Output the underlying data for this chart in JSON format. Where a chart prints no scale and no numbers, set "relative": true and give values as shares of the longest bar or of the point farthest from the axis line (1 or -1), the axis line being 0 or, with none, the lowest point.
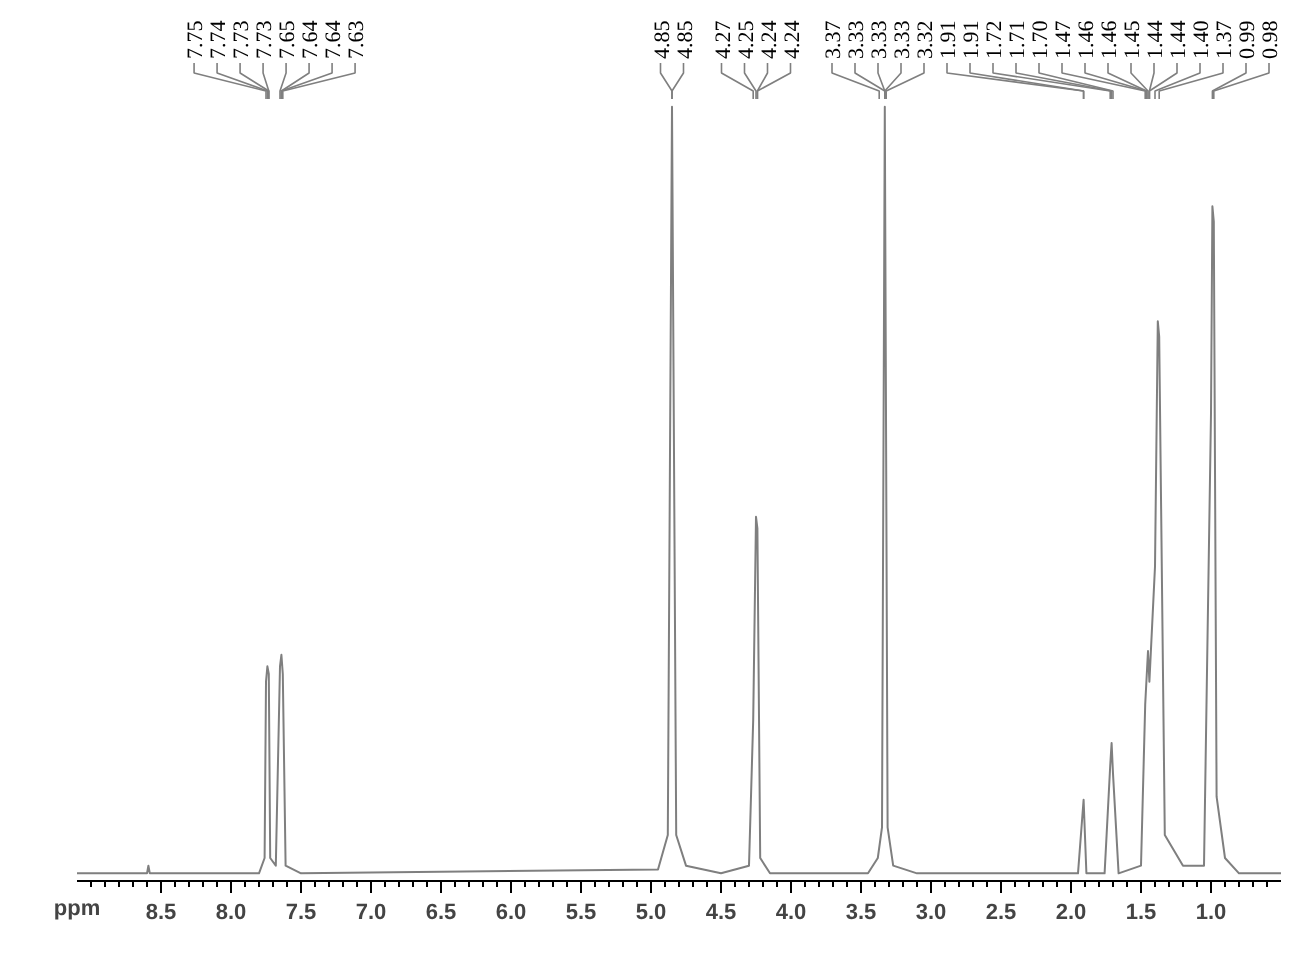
{
  "chart_data": {
    "type": "line",
    "relative": true,
    "xlabel": "ppm",
    "xlim": [
      9.1,
      0.5
    ],
    "xticks": [
      {
        "value": 9.0,
        "label": null
      },
      {
        "value": 8.9,
        "label": null
      },
      {
        "value": 8.8,
        "label": null
      },
      {
        "value": 8.7,
        "label": null
      },
      {
        "value": 8.6,
        "label": null
      },
      8.5,
      {
        "value": 8.4,
        "label": null
      },
      {
        "value": 8.3,
        "label": null
      },
      {
        "value": 8.2,
        "label": null
      },
      {
        "value": 8.1,
        "label": null
      },
      {
        "value": 8,
        "label": "8.0"
      },
      {
        "value": 7.9,
        "label": null
      },
      {
        "value": 7.8,
        "label": null
      },
      {
        "value": 7.7,
        "label": null
      },
      {
        "value": 7.6,
        "label": null
      },
      7.5,
      {
        "value": 7.4,
        "label": null
      },
      {
        "value": 7.3,
        "label": null
      },
      {
        "value": 7.2,
        "label": null
      },
      {
        "value": 7.1,
        "label": null
      },
      {
        "value": 7,
        "label": "7.0"
      },
      {
        "value": 6.9,
        "label": null
      },
      {
        "value": 6.8,
        "label": null
      },
      {
        "value": 6.7,
        "label": null
      },
      {
        "value": 6.6,
        "label": null
      },
      6.5,
      {
        "value": 6.4,
        "label": null
      },
      {
        "value": 6.3,
        "label": null
      },
      {
        "value": 6.2,
        "label": null
      },
      {
        "value": 6.1,
        "label": null
      },
      {
        "value": 6,
        "label": "6.0"
      },
      {
        "value": 5.9,
        "label": null
      },
      {
        "value": 5.8,
        "label": null
      },
      {
        "value": 5.7,
        "label": null
      },
      {
        "value": 5.6,
        "label": null
      },
      5.5,
      {
        "value": 5.4,
        "label": null
      },
      {
        "value": 5.3,
        "label": null
      },
      {
        "value": 5.2,
        "label": null
      },
      {
        "value": 5.1,
        "label": null
      },
      {
        "value": 5,
        "label": "5.0"
      },
      {
        "value": 4.9,
        "label": null
      },
      {
        "value": 4.8,
        "label": null
      },
      {
        "value": 4.7,
        "label": null
      },
      {
        "value": 4.6,
        "label": null
      },
      4.5,
      {
        "value": 4.4,
        "label": null
      },
      {
        "value": 4.3,
        "label": null
      },
      {
        "value": 4.2,
        "label": null
      },
      {
        "value": 4.1,
        "label": null
      },
      {
        "value": 4,
        "label": "4.0"
      },
      {
        "value": 3.9,
        "label": null
      },
      {
        "value": 3.8,
        "label": null
      },
      {
        "value": 3.7,
        "label": null
      },
      {
        "value": 3.6,
        "label": null
      },
      3.5,
      {
        "value": 3.4,
        "label": null
      },
      {
        "value": 3.3,
        "label": null
      },
      {
        "value": 3.2,
        "label": null
      },
      {
        "value": 3.1,
        "label": null
      },
      {
        "value": 3,
        "label": "3.0"
      },
      {
        "value": 2.9,
        "label": null
      },
      {
        "value": 2.8,
        "label": null
      },
      {
        "value": 2.7,
        "label": null
      },
      {
        "value": 2.6,
        "label": null
      },
      2.5,
      {
        "value": 2.4,
        "label": null
      },
      {
        "value": 2.3,
        "label": null
      },
      {
        "value": 2.2,
        "label": null
      },
      {
        "value": 2.1,
        "label": null
      },
      {
        "value": 2,
        "label": "2.0"
      },
      {
        "value": 1.9,
        "label": null
      },
      {
        "value": 1.8,
        "label": null
      },
      {
        "value": 1.7,
        "label": null
      },
      {
        "value": 1.6,
        "label": null
      },
      1.5,
      {
        "value": 1.4,
        "label": null
      },
      {
        "value": 1.3,
        "label": null
      },
      {
        "value": 1.2,
        "label": null
      },
      {
        "value": 1.1,
        "label": null
      },
      {
        "value": 1,
        "label": "1.0"
      },
      {
        "value": 0.9,
        "label": null
      },
      {
        "value": 0.8,
        "label": null
      },
      {
        "value": 0.7,
        "label": null
      },
      {
        "value": 0.6,
        "label": null
      }
    ],
    "grid": false,
    "marker": "none",
    "line_style": "solid",
    "series": [
      {
        "color": "#7f7f7f",
        "x": [
          9.1,
          8.6,
          8.59,
          8.58,
          7.8,
          7.76,
          7.75,
          7.74,
          7.73,
          7.72,
          7.68,
          7.65,
          7.64,
          7.63,
          7.61,
          7.5,
          4.95,
          4.88,
          4.85,
          4.82,
          4.75,
          4.5,
          4.3,
          4.27,
          4.25,
          4.24,
          4.22,
          4.15,
          3.45,
          3.38,
          3.35,
          3.33,
          3.31,
          3.27,
          3.1,
          1.95,
          1.91,
          1.89,
          1.76,
          1.72,
          1.71,
          1.7,
          1.66,
          1.5,
          1.47,
          1.45,
          1.44,
          1.4,
          1.38,
          1.37,
          1.33,
          1.2,
          1.05,
          1.0,
          0.99,
          0.98,
          0.96,
          0.9,
          0.8,
          0.5
        ],
        "values": [
          0,
          0,
          0.01,
          0,
          0,
          0.02,
          0.25,
          0.27,
          0.26,
          0.02,
          0.01,
          0.27,
          0.285,
          0.26,
          0.01,
          0,
          0.005,
          0.05,
          1,
          0.05,
          0.01,
          0,
          0.01,
          0.2,
          0.465,
          0.45,
          0.02,
          0,
          0,
          0.02,
          0.06,
          1,
          0.06,
          0.01,
          0,
          0,
          0.096,
          0,
          0,
          0.14,
          0.17,
          0.13,
          0,
          0.01,
          0.22,
          0.29,
          0.25,
          0.4,
          0.72,
          0.7,
          0.05,
          0.01,
          0.01,
          0.6,
          0.87,
          0.85,
          0.1,
          0.02,
          0,
          0
        ]
      }
    ],
    "annotations": [
      {
        "text": "7.75",
        "x": 7.75
      },
      {
        "text": "7.74",
        "x": 7.74
      },
      {
        "text": "7.73",
        "x": 7.73
      },
      {
        "text": "7.73",
        "x": 7.73
      },
      {
        "text": "7.65",
        "x": 7.65
      },
      {
        "text": "7.64",
        "x": 7.64
      },
      {
        "text": "7.64",
        "x": 7.64
      },
      {
        "text": "7.63",
        "x": 7.63
      },
      {
        "text": "4.85",
        "x": 4.85
      },
      {
        "text": "4.85",
        "x": 4.85
      },
      {
        "text": "4.27",
        "x": 4.27
      },
      {
        "text": "4.25",
        "x": 4.25
      },
      {
        "text": "4.24",
        "x": 4.24
      },
      {
        "text": "4.24",
        "x": 4.24
      },
      {
        "text": "3.37",
        "x": 3.37
      },
      {
        "text": "3.33",
        "x": 3.33
      },
      {
        "text": "3.33",
        "x": 3.33
      },
      {
        "text": "3.33",
        "x": 3.33
      },
      {
        "text": "3.32",
        "x": 3.32
      },
      {
        "text": "1.91",
        "x": 1.91
      },
      {
        "text": "1.91",
        "x": 1.91
      },
      {
        "text": "1.72",
        "x": 1.72
      },
      {
        "text": "1.71",
        "x": 1.71
      },
      {
        "text": "1.70",
        "x": 1.7
      },
      {
        "text": "1.47",
        "x": 1.47
      },
      {
        "text": "1.46",
        "x": 1.46
      },
      {
        "text": "1.46",
        "x": 1.46
      },
      {
        "text": "1.45",
        "x": 1.45
      },
      {
        "text": "1.44",
        "x": 1.44
      },
      {
        "text": "1.44",
        "x": 1.44
      },
      {
        "text": "1.40",
        "x": 1.4
      },
      {
        "text": "1.37",
        "x": 1.37
      },
      {
        "text": "0.99",
        "x": 0.99
      },
      {
        "text": "0.98",
        "x": 0.98
      }
    ]
  }
}
